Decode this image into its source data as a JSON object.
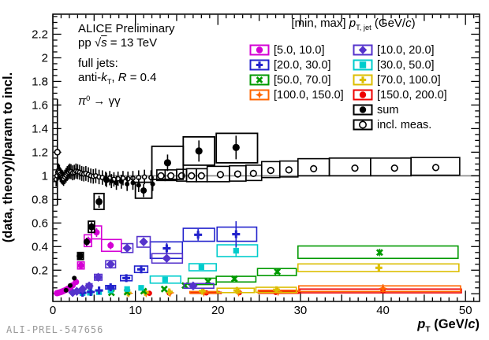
{
  "watermark": "ALI-PREL-547656",
  "annotations": [
    [
      [
        "ALICE Preliminary",
        ""
      ]
    ],
    [
      [
        "pp ",
        ""
      ],
      [
        "√",
        ""
      ],
      [
        "s",
        "i ov"
      ],
      [
        " = 13 TeV",
        ""
      ]
    ],
    [
      [
        "full jets:",
        ""
      ]
    ],
    [
      [
        "anti-",
        ""
      ],
      [
        "k",
        "i"
      ],
      [
        "T",
        "sub"
      ],
      [
        ", ",
        ""
      ],
      [
        "R",
        "i"
      ],
      [
        " = 0.4",
        ""
      ]
    ],
    [
      [
        "π",
        "i"
      ],
      [
        "0",
        "sup"
      ],
      [
        " → γγ",
        ""
      ]
    ]
  ],
  "titles": {
    "x": [
      [
        "p",
        "i"
      ],
      [
        "T",
        "sub"
      ],
      [
        " (GeV/",
        ""
      ],
      [
        "c",
        "i"
      ],
      [
        ")",
        ""
      ]
    ],
    "y": [
      [
        "(data, theory)/param to incl.",
        ""
      ]
    ],
    "legend_header": [
      [
        "[min, max] ",
        ""
      ],
      [
        "p",
        "i"
      ],
      [
        "T, jet",
        "sub"
      ],
      [
        " (GeV/",
        ""
      ],
      [
        "c",
        "i"
      ],
      [
        ")",
        ""
      ]
    ]
  },
  "legend": {
    "col1": [
      {
        "label": "[5.0, 10.0]",
        "color": "#d400d4",
        "marker": "circle"
      },
      {
        "label": "[20.0, 30.0]",
        "color": "#2222cc",
        "marker": "plus"
      },
      {
        "label": "[50.0, 70.0]",
        "color": "#009900",
        "marker": "xmark"
      },
      {
        "label": "[100.0, 150.0]",
        "color": "#ff6600",
        "marker": "star4"
      }
    ],
    "col2": [
      {
        "label": "[10.0, 20.0]",
        "color": "#5533cc",
        "marker": "diamond"
      },
      {
        "label": "[30.0, 50.0]",
        "color": "#00cccc",
        "marker": "square"
      },
      {
        "label": "[70.0, 100.0]",
        "color": "#dcbe00",
        "marker": "plus"
      },
      {
        "label": "[150.0, 200.0]",
        "color": "#ee0000",
        "marker": "circle"
      },
      {
        "label": "sum",
        "color": "#000000",
        "marker": "circle"
      },
      {
        "label": "incl. meas.",
        "color": "#000000",
        "marker": "ocircle"
      }
    ]
  },
  "chart_data": {
    "type": "scatter",
    "title": "",
    "xlabel": "p_T (GeV/c)",
    "ylabel": "(data, theory)/param to incl.",
    "axes": {
      "x": {
        "min": 0,
        "max": 51.7,
        "major_ticks": [
          0,
          10,
          20,
          30,
          40,
          50
        ],
        "minor_step": 1,
        "medium_step": 5
      },
      "y": {
        "min": -0.065,
        "max": 2.37,
        "major_ticks": [
          0.2,
          0.4,
          0.6,
          0.8,
          1,
          1.2,
          1.4,
          1.6,
          1.8,
          2,
          2.2
        ],
        "minor_step": 0.05,
        "major_step": 0.2
      }
    },
    "grid": false,
    "refline_y": 1.0,
    "refline_color": "#909090",
    "legend_position": "top-right-inside",
    "point_format": "[pt, value, box_xlo, box_xhi, box_ylo, box_yhi, stat_err, marker_r]",
    "series": [
      {
        "name": "[150.0, 200.0]",
        "color": "#ee0000",
        "marker": "circle",
        "size": 3.4,
        "points": [
          [
            11.7,
            0.004
          ],
          [
            14.1,
            0.006
          ],
          [
            18.6,
            0.008,
            16.7,
            20.4,
            0.003,
            0.013
          ],
          [
            22.6,
            0.009
          ],
          [
            27.0,
            0.012,
            24.9,
            29.8,
            0.004,
            0.02
          ],
          [
            40.0,
            0.024,
            29.9,
            49.5,
            0.008,
            0.04
          ]
        ]
      },
      {
        "name": "[100.0, 150.0]",
        "color": "#ff6600",
        "marker": "star4",
        "size": 4.8,
        "points": [
          [
            9.2,
            0.004
          ],
          [
            11.3,
            0.006
          ],
          [
            14.2,
            0.008
          ],
          [
            18.3,
            0.012,
            16.6,
            20.2,
            0.005,
            0.019
          ],
          [
            22.5,
            0.013
          ],
          [
            27.3,
            0.018,
            24.9,
            29.6,
            0.007,
            0.03
          ],
          [
            40.0,
            0.045,
            29.8,
            49.4,
            0.02,
            0.067,
            0.035
          ]
        ]
      },
      {
        "name": "[70.0, 100.0]",
        "color": "#dcbe00",
        "marker": "plus",
        "size": 4.4,
        "points": [
          [
            9.1,
            0.008
          ],
          [
            11.2,
            0.012
          ],
          [
            14.1,
            0.016
          ],
          [
            18.1,
            0.022
          ],
          [
            22.3,
            0.028,
            19.9,
            24.4,
            0.01,
            0.047
          ],
          [
            27.1,
            0.034,
            24.6,
            29.5,
            0.012,
            0.055
          ],
          [
            39.5,
            0.22,
            29.7,
            49.2,
            0.188,
            0.253,
            0.028
          ]
        ]
      },
      {
        "name": "[50.0, 70.0]",
        "color": "#009900",
        "marker": "xmark",
        "size": 4.4,
        "points": [
          [
            7.1,
            0.008
          ],
          [
            9.0,
            0.014
          ],
          [
            11.0,
            0.022
          ],
          [
            13.5,
            0.04
          ],
          [
            16.0,
            0.07
          ],
          [
            18.8,
            0.105,
            16.4,
            19.8,
            0.078,
            0.132
          ],
          [
            22.0,
            0.127,
            19.8,
            24.6,
            0.1,
            0.148
          ],
          [
            27.2,
            0.187,
            24.8,
            29.5,
            0.154,
            0.214
          ],
          [
            39.6,
            0.35,
            29.7,
            49.1,
            0.3,
            0.405,
            0.032
          ]
        ]
      },
      {
        "name": "[30.0, 50.0]",
        "color": "#00cccc",
        "marker": "square",
        "size": 3.6,
        "points": [
          [
            3.6,
            0.005
          ],
          [
            4.5,
            0.009
          ],
          [
            5.6,
            0.014
          ],
          [
            7.0,
            0.028
          ],
          [
            9.0,
            0.04
          ],
          [
            10.7,
            0.05
          ],
          [
            13.6,
            0.12,
            11.8,
            15.5,
            0.09,
            0.15
          ],
          [
            18.0,
            0.225,
            16.5,
            19.8,
            0.195,
            0.255
          ],
          [
            22.2,
            0.365,
            19.9,
            24.8,
            0.315,
            0.415,
            0.055
          ]
        ]
      },
      {
        "name": "[20.0, 30.0]",
        "color": "#2222cc",
        "marker": "plus",
        "size": 5,
        "points": [
          [
            3.6,
            0.008
          ],
          [
            4.6,
            0.015
          ],
          [
            5.6,
            0.028
          ],
          [
            7.0,
            0.055,
            6.4,
            7.6,
            0.04,
            0.07
          ],
          [
            8.9,
            0.133,
            8.2,
            9.6,
            0.11,
            0.156
          ],
          [
            10.7,
            0.207,
            9.9,
            11.5,
            0.18,
            0.235
          ],
          [
            13.8,
            0.385,
            11.8,
            15.7,
            0.3,
            0.44,
            0.045
          ],
          [
            17.6,
            0.5,
            15.8,
            19.6,
            0.445,
            0.555,
            0.05
          ],
          [
            22.2,
            0.505,
            19.9,
            24.7,
            0.445,
            0.565,
            0.11
          ]
        ]
      },
      {
        "name": "[10.0, 20.0]",
        "color": "#5533cc",
        "marker": "diamond",
        "size": 4.6,
        "points": [
          [
            2.4,
            0.01
          ],
          [
            2.9,
            0.02
          ],
          [
            3.6,
            0.04
          ],
          [
            4.4,
            0.067,
            4.05,
            4.75,
            0.05,
            0.085
          ],
          [
            5.5,
            0.14,
            5.05,
            5.95,
            0.115,
            0.165
          ],
          [
            7.0,
            0.25,
            6.4,
            7.6,
            0.22,
            0.28
          ],
          [
            9.0,
            0.387,
            8.3,
            9.7,
            0.35,
            0.425
          ],
          [
            11.0,
            0.44,
            10.2,
            11.8,
            0.395,
            0.485
          ],
          [
            13.8,
            0.3,
            12.0,
            15.7,
            0.26,
            0.34
          ],
          [
            17.0,
            0.067,
            15.9,
            19.5,
            0.047,
            0.087
          ]
        ]
      },
      {
        "name": "[5.0, 10.0]",
        "color": "#d400d4",
        "marker": "circle",
        "size": 4,
        "points": [
          [
            0.5,
            0.005
          ],
          [
            0.65,
            0.008
          ],
          [
            0.8,
            0.011
          ],
          [
            0.95,
            0.014
          ],
          [
            1.1,
            0.018
          ],
          [
            1.3,
            0.024
          ],
          [
            1.55,
            0.032
          ],
          [
            1.8,
            0.042
          ],
          [
            2.1,
            0.055
          ],
          [
            2.4,
            0.072
          ],
          [
            2.8,
            0.1
          ],
          [
            3.4,
            0.24,
            3.0,
            3.8,
            0.21,
            0.27
          ],
          [
            4.3,
            0.45,
            3.8,
            4.7,
            0.4,
            0.5
          ],
          [
            5.3,
            0.52,
            4.7,
            5.9,
            0.465,
            0.575
          ],
          [
            7.0,
            0.41,
            5.9,
            8.3,
            0.36,
            0.46
          ]
        ]
      },
      {
        "name": "incl. meas.",
        "color": "#000000",
        "marker": "ocircle",
        "size": 2.6,
        "points": [
          [
            0.55,
            1.2,
            null,
            null,
            null,
            null,
            0.45,
            3.4
          ],
          [
            0.4,
            0.97
          ],
          [
            0.5,
            1.0
          ],
          [
            0.6,
            1.03
          ],
          [
            0.7,
            1.04
          ],
          [
            0.8,
            1.03
          ],
          [
            0.9,
            1.01
          ],
          [
            1.0,
            1.0
          ],
          [
            1.1,
            0.99
          ],
          [
            1.2,
            0.985
          ],
          [
            1.3,
            0.975
          ],
          [
            1.45,
            0.99
          ],
          [
            1.6,
            1.005
          ],
          [
            1.75,
            1.02
          ],
          [
            1.9,
            1.03
          ],
          [
            2.05,
            1.04
          ],
          [
            2.2,
            1.035
          ],
          [
            2.4,
            1.025
          ],
          [
            2.6,
            1.03
          ],
          [
            2.8,
            1.04
          ],
          [
            3.0,
            1.035
          ],
          [
            3.25,
            1.03
          ],
          [
            3.5,
            1.02
          ],
          [
            3.75,
            1.015
          ],
          [
            4.0,
            1.02
          ],
          [
            4.3,
            1.01
          ],
          [
            4.6,
            1.0
          ],
          [
            4.9,
            0.995
          ],
          [
            5.2,
            1.0
          ],
          [
            5.6,
            0.99
          ],
          [
            6.0,
            0.985
          ],
          [
            6.4,
            0.975
          ],
          [
            6.9,
            0.98
          ],
          [
            7.4,
            0.97
          ],
          [
            7.9,
            0.975
          ],
          [
            8.5,
            0.98
          ],
          [
            9.1,
            0.975
          ],
          [
            9.7,
            0.98
          ],
          [
            10.4,
            0.985
          ],
          [
            11.1,
            0.99
          ],
          [
            11.9,
            0.985
          ],
          [
            13.1,
            1.0,
            12.6,
            13.6,
            0.96,
            1.05,
            0.03,
            3.8
          ],
          [
            14.3,
            1.0,
            13.6,
            15.0,
            0.96,
            1.05,
            0.03,
            3.8
          ],
          [
            15.6,
            1.0,
            15.0,
            16.2,
            0.955,
            1.055,
            0.03,
            3.8
          ],
          [
            16.8,
            1.0,
            16.2,
            17.4,
            0.95,
            1.06,
            0.03,
            3.8
          ],
          [
            18.0,
            1.0,
            17.4,
            18.7,
            0.95,
            1.06,
            0.03,
            3.8
          ],
          [
            20.3,
            1.01,
            18.7,
            21.4,
            0.95,
            1.08,
            0.03,
            3.8
          ],
          [
            22.4,
            1.015,
            21.4,
            23.4,
            0.955,
            1.085,
            0.03,
            3.8
          ],
          [
            24.3,
            1.02,
            23.4,
            25.3,
            0.96,
            1.09,
            0.03,
            3.8
          ],
          [
            26.4,
            1.045,
            25.3,
            27.5,
            0.985,
            1.12,
            0.03,
            3.8
          ],
          [
            28.6,
            1.05,
            27.5,
            29.7,
            0.99,
            1.125,
            0.03,
            3.8
          ],
          [
            31.6,
            1.06,
            29.7,
            33.5,
            1.0,
            1.145,
            0.03,
            3.8
          ],
          [
            36.6,
            1.065,
            33.5,
            38.5,
            1.0,
            1.15,
            0.03,
            3.8
          ],
          [
            41.4,
            1.065,
            38.5,
            43.4,
            1.0,
            1.15,
            0.03,
            3.8
          ],
          [
            46.4,
            1.07,
            43.4,
            49.3,
            1.005,
            1.155,
            0.03,
            3.8
          ]
        ]
      },
      {
        "name": "sum",
        "color": "#000000",
        "marker": "circle",
        "size": 3,
        "boxw": 1.8,
        "points": [
          [
            1.6,
            0.03
          ],
          [
            2.1,
            0.07
          ],
          [
            2.6,
            0.133
          ],
          [
            3.3,
            0.32,
            3.0,
            3.7,
            0.29,
            0.35,
            null,
            4.4
          ],
          [
            4.1,
            0.44,
            null,
            null,
            null,
            null,
            null,
            4
          ],
          [
            4.7,
            0.567,
            4.3,
            5.05,
            0.52,
            0.615,
            null,
            4.4
          ],
          [
            5.6,
            0.78,
            5.0,
            6.2,
            0.715,
            0.85,
            null,
            4.4
          ],
          [
            6.5,
            0.965,
            null,
            null,
            null,
            null,
            null,
            4
          ],
          [
            7.1,
            0.955
          ],
          [
            7.7,
            0.94
          ],
          [
            8.3,
            0.95
          ],
          [
            9.0,
            0.93
          ],
          [
            9.7,
            0.94
          ],
          [
            10.4,
            0.92
          ],
          [
            11.0,
            0.875,
            10.0,
            12.0,
            0.81,
            0.945,
            null,
            4
          ],
          [
            12.1,
            0.93
          ],
          [
            13.9,
            1.11,
            12.0,
            15.8,
            0.97,
            1.25,
            0.07,
            4.6
          ],
          [
            17.7,
            1.21,
            15.8,
            19.6,
            1.09,
            1.33,
            0.09,
            4.6
          ],
          [
            22.2,
            1.24,
            19.8,
            24.8,
            1.11,
            1.36,
            0.1,
            4.6
          ]
        ]
      }
    ]
  }
}
